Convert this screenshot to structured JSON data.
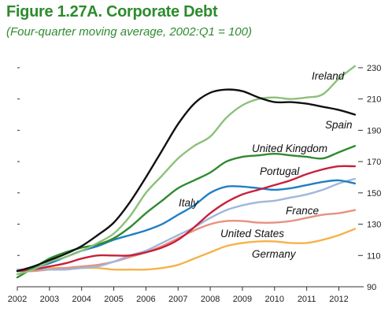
{
  "title": "Figure 1.27A. Corporate Debt",
  "subtitle": "(Four-quarter moving average, 2002:Q1 = 100)",
  "chart_data": {
    "type": "line",
    "title": "Figure 1.27A. Corporate Debt",
    "subtitle": "(Four-quarter moving average, 2002:Q1 = 100)",
    "xlabel": "",
    "ylabel": "",
    "xlim": [
      2002,
      2012.6
    ],
    "ylim": [
      90,
      235
    ],
    "x_ticks": [
      "2002",
      "2003",
      "2004",
      "2005",
      "2006",
      "2007",
      "2008",
      "2009",
      "2010",
      "2011",
      "2012"
    ],
    "y_ticks": [
      90,
      110,
      130,
      150,
      170,
      190,
      210,
      230
    ],
    "y_axis_position": "right",
    "grid": false,
    "legend": "labels on lines",
    "series": [
      {
        "name": "Ireland",
        "color": "#8cc07a",
        "x": [
          2002,
          2002.5,
          2003,
          2003.5,
          2004,
          2004.5,
          2005,
          2005.5,
          2006,
          2006.5,
          2007,
          2007.5,
          2008,
          2008.5,
          2009,
          2009.5,
          2010,
          2010.5,
          2011,
          2011.5,
          2012,
          2012.5
        ],
        "y": [
          98,
          101,
          106,
          109,
          113,
          118,
          124,
          135,
          150,
          161,
          172,
          180,
          186,
          198,
          206,
          210,
          211,
          210,
          211,
          213,
          223,
          231
        ]
      },
      {
        "name": "Spain",
        "color": "#111111",
        "x": [
          2002,
          2002.5,
          2003,
          2003.5,
          2004,
          2004.5,
          2005,
          2005.5,
          2006,
          2006.5,
          2007,
          2007.5,
          2008,
          2008.5,
          2009,
          2009.5,
          2010,
          2010.5,
          2011,
          2011.5,
          2012,
          2012.5
        ],
        "y": [
          100,
          103,
          107,
          111,
          116,
          123,
          131,
          144,
          160,
          177,
          194,
          207,
          214,
          216,
          215,
          211,
          208,
          208,
          207,
          205,
          203,
          200
        ]
      },
      {
        "name": "United Kingdom",
        "color": "#2f8a2f",
        "x": [
          2002,
          2002.5,
          2003,
          2003.5,
          2004,
          2004.5,
          2005,
          2005.5,
          2006,
          2006.5,
          2007,
          2007.5,
          2008,
          2008.5,
          2009,
          2009.5,
          2010,
          2010.5,
          2011,
          2011.5,
          2012,
          2012.5
        ],
        "y": [
          96,
          102,
          108,
          112,
          115,
          117,
          121,
          128,
          137,
          145,
          153,
          158,
          163,
          170,
          173,
          174,
          175,
          174,
          173,
          172,
          176,
          180
        ]
      },
      {
        "name": "Portugal",
        "color": "#c8203a",
        "x": [
          2002,
          2002.5,
          2003,
          2003.5,
          2004,
          2004.5,
          2005,
          2005.5,
          2006,
          2006.5,
          2007,
          2007.5,
          2008,
          2008.5,
          2009,
          2009.5,
          2010,
          2010.5,
          2011,
          2011.5,
          2012,
          2012.5
        ],
        "y": [
          100,
          101,
          103,
          105,
          108,
          110,
          110,
          110,
          112,
          115,
          120,
          128,
          137,
          144,
          149,
          152,
          155,
          158,
          162,
          165,
          167,
          167
        ]
      },
      {
        "name": "Italy",
        "color": "#1f7fc4",
        "x": [
          2002,
          2002.5,
          2003,
          2003.5,
          2004,
          2004.5,
          2005,
          2005.5,
          2006,
          2006.5,
          2007,
          2007.5,
          2008,
          2008.5,
          2009,
          2009.5,
          2010,
          2010.5,
          2011,
          2011.5,
          2012,
          2012.5
        ],
        "y": [
          100,
          102,
          105,
          109,
          113,
          116,
          120,
          123,
          126,
          130,
          136,
          142,
          150,
          154,
          154,
          153,
          152,
          153,
          155,
          157,
          158,
          156
        ]
      },
      {
        "name": "France",
        "color": "#9fb6dc",
        "x": [
          2002,
          2002.5,
          2003,
          2003.5,
          2004,
          2004.5,
          2005,
          2005.5,
          2006,
          2006.5,
          2007,
          2007.5,
          2008,
          2008.5,
          2009,
          2009.5,
          2010,
          2010.5,
          2011,
          2011.5,
          2012,
          2012.5
        ],
        "y": [
          101,
          101,
          101,
          101,
          102,
          103,
          106,
          110,
          113,
          118,
          123,
          128,
          134,
          139,
          142,
          144,
          145,
          147,
          149,
          152,
          156,
          159
        ]
      },
      {
        "name": "United States",
        "color": "#e89080",
        "x": [
          2002,
          2002.5,
          2003,
          2003.5,
          2004,
          2004.5,
          2005,
          2005.5,
          2006,
          2006.5,
          2007,
          2007.5,
          2008,
          2008.5,
          2009,
          2009.5,
          2010,
          2010.5,
          2011,
          2011.5,
          2012,
          2012.5
        ],
        "y": [
          100,
          100,
          101,
          102,
          103,
          104,
          106,
          109,
          112,
          116,
          121,
          126,
          130,
          132,
          132,
          131,
          131,
          132,
          134,
          136,
          137,
          139
        ]
      },
      {
        "name": "Germany",
        "color": "#f6b24a",
        "x": [
          2002,
          2002.5,
          2003,
          2003.5,
          2004,
          2004.5,
          2005,
          2005.5,
          2006,
          2006.5,
          2007,
          2007.5,
          2008,
          2008.5,
          2009,
          2009.5,
          2010,
          2010.5,
          2011,
          2011.5,
          2012,
          2012.5
        ],
        "y": [
          100,
          101,
          102,
          102,
          102,
          102,
          101,
          101,
          101,
          102,
          104,
          108,
          112,
          116,
          118,
          119,
          119,
          118,
          118,
          120,
          123,
          127
        ]
      }
    ]
  }
}
